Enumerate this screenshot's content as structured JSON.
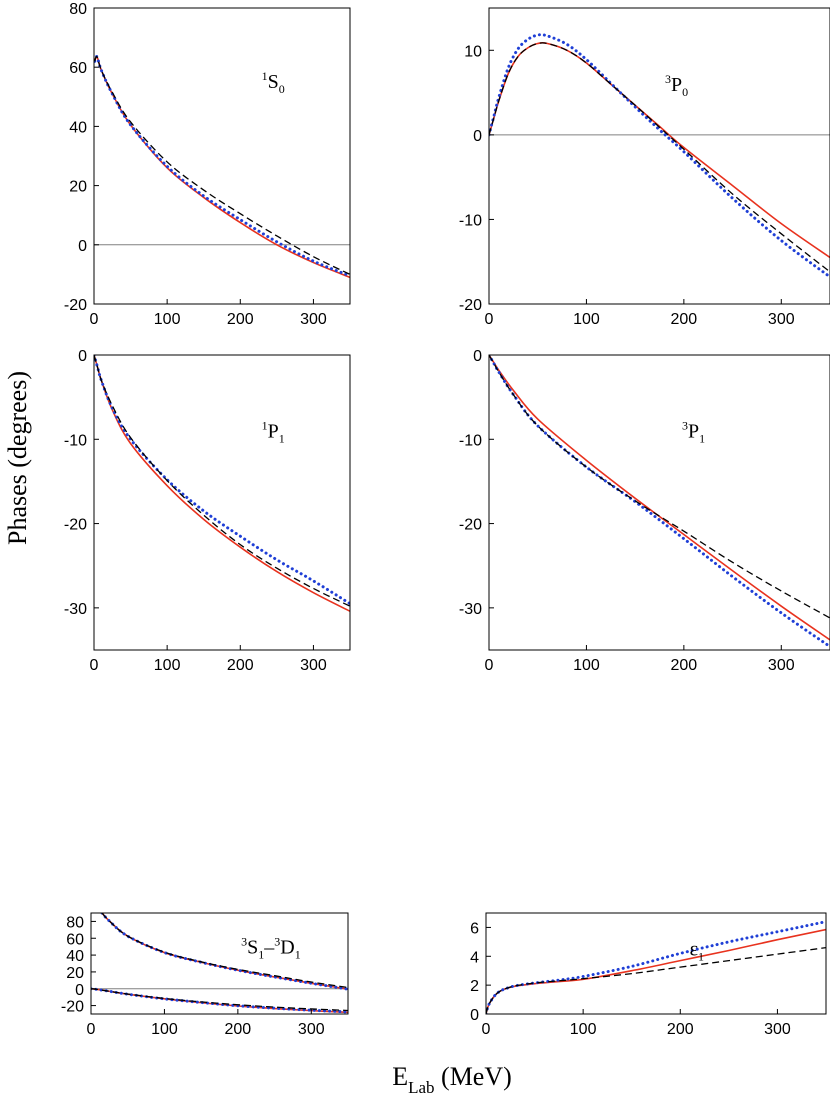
{
  "figure": {
    "ylabel": "Phases (degrees)",
    "xlabel_main": "E",
    "xlabel_sub": "Lab",
    "xlabel_unit": " (MeV)"
  },
  "colors": {
    "red_solid": "#e8321e",
    "blue_dotted": "#1f3fd6",
    "black_dashed": "#000000",
    "zero_line": "#808080"
  },
  "chart_data": [
    {
      "id": "1S0",
      "type": "line",
      "label": {
        "sup": "1",
        "main": "S",
        "sub": "0"
      },
      "xlim": [
        0,
        350
      ],
      "ylim": [
        -20,
        80
      ],
      "xticks": [
        0,
        100,
        200,
        300
      ],
      "yticks": [
        -20,
        0,
        20,
        40,
        60,
        80
      ],
      "zero_line": true,
      "series": [
        {
          "style": "red_solid",
          "x": [
            1,
            3,
            5,
            10,
            25,
            50,
            100,
            150,
            200,
            250,
            300,
            350
          ],
          "y": [
            62,
            63.5,
            63,
            59,
            51,
            40.5,
            26,
            16,
            7.5,
            0,
            -6,
            -11
          ]
        },
        {
          "style": "blue_dotted",
          "x": [
            1,
            3,
            5,
            10,
            25,
            50,
            100,
            150,
            200,
            250,
            300,
            350
          ],
          "y": [
            62,
            63.5,
            63,
            59,
            51,
            40.5,
            26.5,
            16.5,
            8.5,
            1,
            -5.5,
            -10.5
          ]
        },
        {
          "style": "black_dashed",
          "x": [
            1,
            3,
            5,
            10,
            25,
            50,
            100,
            150,
            200,
            250,
            300,
            350
          ],
          "y": [
            62,
            63.5,
            63,
            59,
            51.5,
            41.5,
            28,
            18.5,
            10.5,
            3,
            -4,
            -10
          ]
        }
      ]
    },
    {
      "id": "3P0",
      "type": "line",
      "label": {
        "sup": "3",
        "main": "P",
        "sub": "0"
      },
      "xlim": [
        0,
        350
      ],
      "ylim": [
        -20,
        15
      ],
      "xticks": [
        0,
        100,
        200,
        300
      ],
      "yticks": [
        -20,
        -10,
        0,
        10
      ],
      "zero_line": true,
      "series": [
        {
          "style": "red_solid",
          "x": [
            0,
            5,
            10,
            20,
            30,
            40,
            50,
            60,
            80,
            100,
            125,
            150,
            175,
            200,
            250,
            300,
            350
          ],
          "y": [
            0,
            2,
            4,
            7.3,
            9.3,
            10.3,
            10.8,
            10.8,
            10,
            8.5,
            6,
            3.5,
            1,
            -1.5,
            -6,
            -10.5,
            -14.5
          ]
        },
        {
          "style": "blue_dotted",
          "x": [
            0,
            5,
            10,
            20,
            30,
            40,
            50,
            60,
            80,
            100,
            125,
            150,
            175,
            200,
            250,
            300,
            350
          ],
          "y": [
            0,
            2.2,
            4.4,
            8,
            10.2,
            11.3,
            11.8,
            11.7,
            10.7,
            8.9,
            6.1,
            3.3,
            0.6,
            -2,
            -7.5,
            -12.5,
            -16.8
          ]
        },
        {
          "style": "black_dashed",
          "x": [
            0,
            5,
            10,
            20,
            30,
            40,
            50,
            60,
            80,
            100,
            125,
            150,
            175,
            200,
            250,
            300,
            350
          ],
          "y": [
            0,
            2,
            4,
            7.3,
            9.3,
            10.3,
            10.8,
            10.8,
            10,
            8.5,
            6,
            3.5,
            0.9,
            -1.7,
            -7,
            -11.7,
            -16.2
          ]
        }
      ]
    },
    {
      "id": "1P1",
      "type": "line",
      "label": {
        "sup": "1",
        "main": "P",
        "sub": "1"
      },
      "xlim": [
        0,
        350
      ],
      "ylim": [
        -35,
        0
      ],
      "xticks": [
        0,
        100,
        200,
        300
      ],
      "yticks": [
        -30,
        -20,
        -10,
        0
      ],
      "zero_line": false,
      "series": [
        {
          "style": "red_solid",
          "x": [
            0,
            5,
            10,
            25,
            50,
            100,
            150,
            200,
            250,
            300,
            350
          ],
          "y": [
            0,
            -1.5,
            -3,
            -6.5,
            -10.5,
            -15.5,
            -19.5,
            -22.8,
            -25.7,
            -28.2,
            -30.4
          ]
        },
        {
          "style": "blue_dotted",
          "x": [
            0,
            5,
            10,
            25,
            50,
            100,
            150,
            200,
            250,
            300,
            350
          ],
          "y": [
            0,
            -1.5,
            -3,
            -6.3,
            -10,
            -14.8,
            -18.5,
            -21.5,
            -24.3,
            -26.8,
            -29.5
          ]
        },
        {
          "style": "black_dashed",
          "x": [
            0,
            5,
            10,
            25,
            50,
            100,
            150,
            200,
            250,
            300,
            350
          ],
          "y": [
            0,
            -1.5,
            -3,
            -6,
            -9.8,
            -14.9,
            -19,
            -22.5,
            -25.3,
            -27.7,
            -29.8
          ]
        }
      ]
    },
    {
      "id": "3P1",
      "type": "line",
      "label": {
        "sup": "3",
        "main": "P",
        "sub": "1"
      },
      "xlim": [
        0,
        350
      ],
      "ylim": [
        -35,
        0
      ],
      "xticks": [
        0,
        100,
        200,
        300
      ],
      "yticks": [
        -30,
        -20,
        -10,
        0
      ],
      "zero_line": false,
      "series": [
        {
          "style": "red_solid",
          "x": [
            0,
            5,
            10,
            25,
            50,
            100,
            150,
            200,
            250,
            300,
            350
          ],
          "y": [
            0,
            -0.9,
            -1.8,
            -4.2,
            -7.6,
            -12.5,
            -17,
            -21.3,
            -25.6,
            -29.8,
            -33.8
          ]
        },
        {
          "style": "blue_dotted",
          "x": [
            0,
            5,
            10,
            25,
            50,
            100,
            150,
            200,
            250,
            300,
            350
          ],
          "y": [
            0,
            -1,
            -2,
            -4.7,
            -8.4,
            -13.3,
            -17.4,
            -21.8,
            -26.3,
            -30.6,
            -34.6
          ]
        },
        {
          "style": "black_dashed",
          "x": [
            0,
            5,
            10,
            25,
            50,
            100,
            150,
            200,
            250,
            300,
            350
          ],
          "y": [
            0,
            -1,
            -2,
            -4.7,
            -8.4,
            -13.3,
            -17.3,
            -20.9,
            -24.6,
            -28,
            -31.2
          ]
        }
      ]
    },
    {
      "id": "3S1-3D1",
      "type": "line",
      "label": {
        "sup1": "3",
        "main1": "S",
        "sub1": "1",
        "dash": "–",
        "sup2": "3",
        "main2": "D",
        "sub2": "1"
      },
      "xlim": [
        0,
        350
      ],
      "ylim": [
        -30,
        90
      ],
      "xticks": [
        0,
        100,
        200,
        300
      ],
      "yticks": [
        -20,
        0,
        20,
        40,
        60,
        80
      ],
      "zero_line": true,
      "series": [
        {
          "style": "red_solid",
          "x": [
            15,
            25,
            50,
            100,
            150,
            200,
            250,
            300,
            350
          ],
          "y": [
            90,
            80.5,
            62.5,
            43,
            31.5,
            22,
            14,
            6.5,
            -0.5
          ]
        },
        {
          "style": "blue_dotted",
          "x": [
            15,
            25,
            50,
            100,
            150,
            200,
            250,
            300,
            350
          ],
          "y": [
            90,
            80.5,
            62.5,
            43,
            31.5,
            22,
            14,
            6.5,
            -0.5
          ]
        },
        {
          "style": "black_dashed",
          "x": [
            15,
            25,
            50,
            100,
            150,
            200,
            250,
            300,
            350
          ],
          "y": [
            90,
            80.5,
            62.5,
            43.5,
            32,
            23,
            15.5,
            8,
            1.5
          ]
        },
        {
          "style": "red_solid",
          "x": [
            0,
            10,
            25,
            50,
            100,
            150,
            200,
            250,
            300,
            350
          ],
          "y": [
            0,
            -1,
            -3,
            -6.5,
            -12,
            -16.5,
            -20.5,
            -23.5,
            -26,
            -28
          ]
        },
        {
          "style": "blue_dotted",
          "x": [
            0,
            10,
            25,
            50,
            100,
            150,
            200,
            250,
            300,
            350
          ],
          "y": [
            0,
            -1,
            -3,
            -6.5,
            -12,
            -16.3,
            -20.2,
            -23.1,
            -25.5,
            -27.5
          ]
        },
        {
          "style": "black_dashed",
          "x": [
            0,
            10,
            25,
            50,
            100,
            150,
            200,
            250,
            300,
            350
          ],
          "y": [
            0,
            -1,
            -3,
            -6.3,
            -11.5,
            -15.6,
            -19,
            -21.8,
            -24,
            -25.8
          ]
        }
      ]
    },
    {
      "id": "eps1",
      "type": "line",
      "label": {
        "main": "ε",
        "sub": "1"
      },
      "xlim": [
        0,
        350
      ],
      "ylim": [
        0,
        7
      ],
      "xticks": [
        0,
        100,
        200,
        300
      ],
      "yticks": [
        0,
        2,
        4,
        6
      ],
      "zero_line": false,
      "series": [
        {
          "style": "red_solid",
          "x": [
            0,
            2,
            5,
            10,
            15,
            20,
            30,
            50,
            75,
            100,
            150,
            200,
            250,
            300,
            350
          ],
          "y": [
            0,
            0.5,
            0.9,
            1.35,
            1.6,
            1.75,
            1.93,
            2.1,
            2.25,
            2.4,
            3.0,
            3.7,
            4.4,
            5.15,
            5.85
          ]
        },
        {
          "style": "blue_dotted",
          "x": [
            0,
            2,
            5,
            10,
            15,
            20,
            30,
            50,
            75,
            100,
            150,
            200,
            250,
            300,
            350
          ],
          "y": [
            0,
            0.5,
            0.9,
            1.35,
            1.6,
            1.75,
            1.95,
            2.15,
            2.35,
            2.6,
            3.3,
            4.2,
            5.0,
            5.7,
            6.4
          ]
        },
        {
          "style": "black_dashed",
          "x": [
            0,
            2,
            5,
            10,
            15,
            20,
            30,
            50,
            75,
            100,
            150,
            200,
            250,
            300,
            350
          ],
          "y": [
            0,
            0.5,
            0.9,
            1.35,
            1.6,
            1.75,
            1.95,
            2.15,
            2.3,
            2.45,
            2.8,
            3.25,
            3.7,
            4.15,
            4.6
          ]
        }
      ]
    }
  ]
}
